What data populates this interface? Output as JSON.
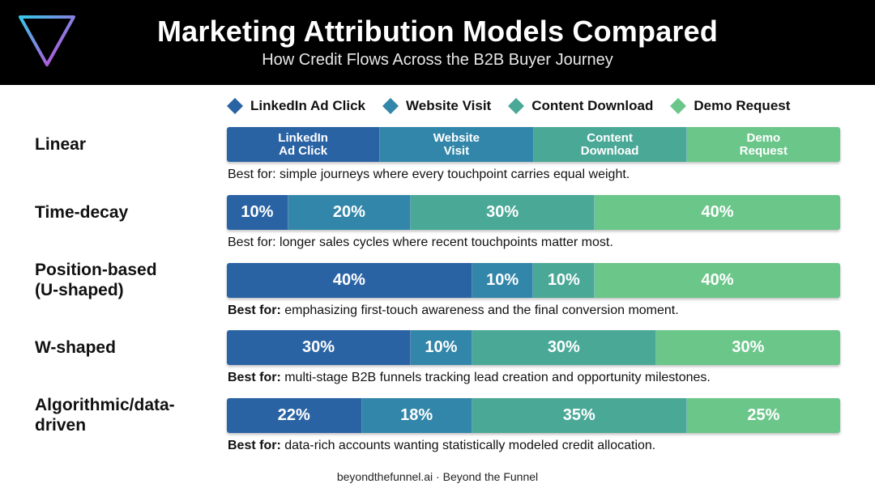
{
  "header": {
    "title": "Marketing Attribution Models Compared",
    "subtitle": "How Credit Flows Across the B2B Buyer Journey"
  },
  "colors": {
    "linkedin": "#2a63a4",
    "website": "#3286a9",
    "content": "#4aa897",
    "demo": "#6bc68a",
    "header_bg": "#000000",
    "logo_cyan": "#36c8e8",
    "logo_magenta": "#d23bd6"
  },
  "legend": [
    {
      "label": "LinkedIn Ad Click",
      "color": "#2a63a4"
    },
    {
      "label": "Website Visit",
      "color": "#3286a9"
    },
    {
      "label": "Content Download",
      "color": "#4aa897"
    },
    {
      "label": "Demo Request",
      "color": "#6bc68a"
    }
  ],
  "chart_data": {
    "type": "bar",
    "orientation": "horizontal-stacked-100",
    "categories": [
      "Linear",
      "Time-decay",
      "Position-based (U-shaped)",
      "W-shaped",
      "Algorithmic/data-driven"
    ],
    "series": [
      {
        "name": "LinkedIn Ad Click",
        "values": [
          25,
          10,
          40,
          30,
          22
        ]
      },
      {
        "name": "Website Visit",
        "values": [
          25,
          20,
          10,
          10,
          18
        ]
      },
      {
        "name": "Content Download",
        "values": [
          25,
          30,
          10,
          30,
          35
        ]
      },
      {
        "name": "Demo Request",
        "values": [
          25,
          40,
          40,
          30,
          25
        ]
      }
    ],
    "legend_position": "top",
    "rows": [
      {
        "label_lines": [
          "Linear"
        ],
        "segments": [
          {
            "value": 25,
            "text": [
              "LinkedIn",
              "Ad Click"
            ]
          },
          {
            "value": 25,
            "text": [
              "Website",
              "Visit"
            ]
          },
          {
            "value": 25,
            "text": [
              "Content",
              "Download"
            ]
          },
          {
            "value": 25,
            "text": [
              "Demo",
              "Request"
            ]
          }
        ],
        "note_prefix": "",
        "note": "Best for: simple journeys where every touchpoint carries equal weight."
      },
      {
        "label_lines": [
          "Time-decay"
        ],
        "segments": [
          {
            "value": 10,
            "text": [
              "10%"
            ]
          },
          {
            "value": 20,
            "text": [
              "20%"
            ]
          },
          {
            "value": 30,
            "text": [
              "30%"
            ]
          },
          {
            "value": 40,
            "text": [
              "40%"
            ]
          }
        ],
        "note_prefix": "",
        "note": "Best for: longer sales cycles where recent touchpoints matter most."
      },
      {
        "label_lines": [
          "Position-based",
          "(U-shaped)"
        ],
        "segments": [
          {
            "value": 40,
            "text": [
              "40%"
            ]
          },
          {
            "value": 10,
            "text": [
              "10%"
            ]
          },
          {
            "value": 10,
            "text": [
              "10%"
            ]
          },
          {
            "value": 40,
            "text": [
              "40%"
            ]
          }
        ],
        "note_prefix": "Best for:",
        "note": " emphasizing first-touch awareness and the final conversion moment."
      },
      {
        "label_lines": [
          "W-shaped"
        ],
        "segments": [
          {
            "value": 30,
            "text": [
              "30%"
            ]
          },
          {
            "value": 10,
            "text": [
              "10%"
            ]
          },
          {
            "value": 30,
            "text": [
              "30%"
            ]
          },
          {
            "value": 30,
            "text": [
              "30%"
            ]
          }
        ],
        "note_prefix": "Best for:",
        "note": " multi-stage B2B funnels tracking lead creation and opportunity milestones."
      },
      {
        "label_lines": [
          "Algorithmic/data-",
          "driven"
        ],
        "segments": [
          {
            "value": 22,
            "text": [
              "22%"
            ]
          },
          {
            "value": 18,
            "text": [
              "18%"
            ]
          },
          {
            "value": 35,
            "text": [
              "35%"
            ]
          },
          {
            "value": 25,
            "text": [
              "25%"
            ]
          }
        ],
        "note_prefix": "Best for:",
        "note": " data-rich accounts wanting statistically modeled credit allocation."
      }
    ]
  },
  "footer": {
    "text": "beyondthefunnel.ai · Beyond the Funnel"
  }
}
